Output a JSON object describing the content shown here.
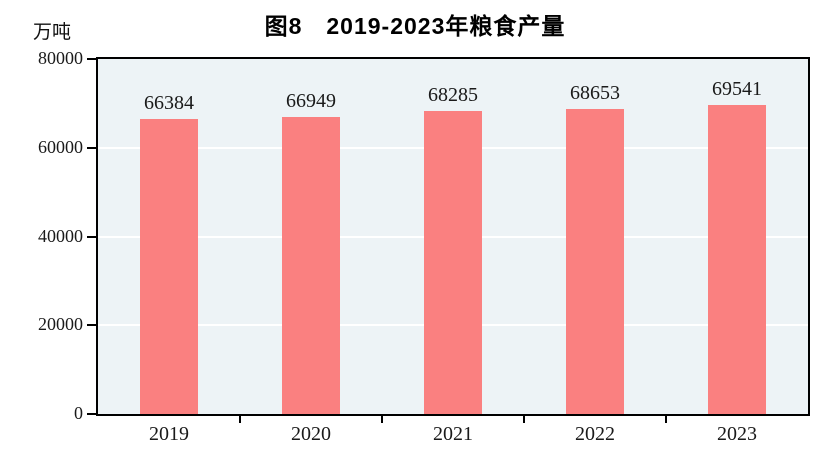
{
  "title": "图8　2019-2023年粮食产量",
  "y_axis_unit": "万吨",
  "chart_data": {
    "type": "bar",
    "title": "图8　2019-2023年粮食产量",
    "categories": [
      "2019",
      "2020",
      "2021",
      "2022",
      "2023"
    ],
    "values": [
      66384,
      66949,
      68285,
      68653,
      69541
    ],
    "xlabel": "",
    "ylabel": "万吨",
    "ylim": [
      0,
      80000
    ],
    "yticks": [
      0,
      20000,
      40000,
      60000,
      80000
    ],
    "grid": "horizontal-white-at-yticks",
    "legend_position": "none",
    "data_labels_shown": true,
    "colors": {
      "bar_fill": "#fa8080",
      "plot_background": "#edf3f6",
      "gridline": "#ffffff",
      "axis_border": "#000000",
      "text": "#1a1a1a"
    }
  }
}
